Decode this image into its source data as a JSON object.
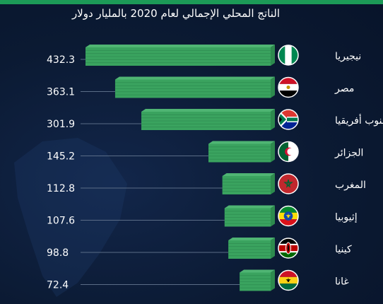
{
  "subtitle": "الناتج المحلي الإجمالي لعام 2020 بالمليار دولار",
  "colors": {
    "background": "#0b1a33",
    "bar_top": "#4fb573",
    "bar_side": "#2d8a4e",
    "bar_face": "#3aa35f",
    "value_text": "#ffffff",
    "leader_line": "#5a6c86"
  },
  "chart_data": {
    "type": "bar",
    "orientation": "horizontal",
    "unit": "billion USD",
    "categories": [
      "نيجيريا",
      "مصر",
      "جنوب أفريقيا",
      "الجزائر",
      "المغرب",
      "إثيوبيا",
      "كينيا",
      "غانا"
    ],
    "values": [
      432.3,
      363.1,
      301.9,
      145.2,
      112.8,
      107.6,
      98.8,
      72.4
    ],
    "value_labels": [
      "432.3",
      "363.1",
      "301.9",
      "145.2",
      "112.8",
      "107.6",
      "98.8",
      "72.4"
    ],
    "flag_icons": [
      "nigeria-flag-icon",
      "egypt-flag-icon",
      "south-africa-flag-icon",
      "algeria-flag-icon",
      "morocco-flag-icon",
      "ethiopia-flag-icon",
      "kenya-flag-icon",
      "ghana-flag-icon"
    ],
    "xlim": [
      0,
      432.3
    ],
    "grid": false,
    "legend": "none"
  }
}
